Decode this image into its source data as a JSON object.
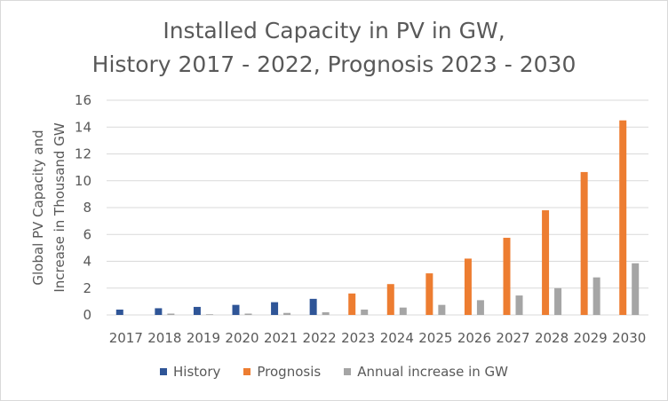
{
  "chart_data": {
    "type": "bar",
    "title_line1": "Installed Capacity in PV in GW,",
    "title_line2": "History 2017 - 2022, Prognosis 2023 - 2030",
    "ylabel_line1": "Global PV Capacity and",
    "ylabel_line2": "Increase in Thousand GW",
    "xlabel": "",
    "ylim": [
      0,
      16
    ],
    "yticks": [
      0,
      2,
      4,
      6,
      8,
      10,
      12,
      14,
      16
    ],
    "grid": true,
    "legend_position": "bottom",
    "categories": [
      "2017",
      "2018",
      "2019",
      "2020",
      "2021",
      "2022",
      "2023",
      "2024",
      "2025",
      "2026",
      "2027",
      "2028",
      "2029",
      "2030"
    ],
    "series": [
      {
        "name": "History",
        "color": "#2f5597",
        "values": [
          0.4,
          0.5,
          0.6,
          0.75,
          0.95,
          1.2,
          null,
          null,
          null,
          null,
          null,
          null,
          null,
          null
        ]
      },
      {
        "name": "Prognosis",
        "color": "#ed7d31",
        "values": [
          null,
          null,
          null,
          null,
          null,
          null,
          1.6,
          2.3,
          3.1,
          4.2,
          5.75,
          7.8,
          10.65,
          14.5
        ]
      },
      {
        "name": "Annual increase in GW",
        "color": "#a5a5a5",
        "values": [
          null,
          0.1,
          0.05,
          0.1,
          0.15,
          0.2,
          0.4,
          0.55,
          0.75,
          1.1,
          1.45,
          2.0,
          2.8,
          3.85
        ]
      }
    ]
  }
}
